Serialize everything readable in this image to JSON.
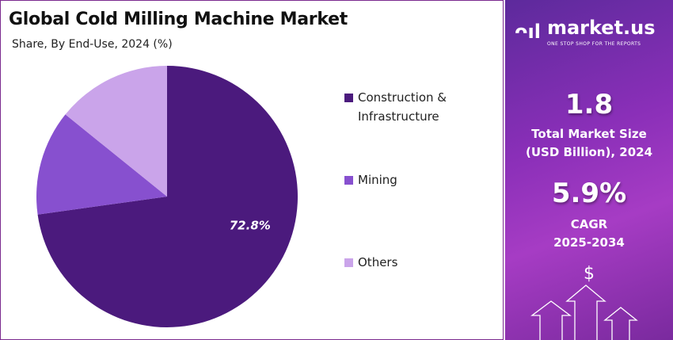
{
  "chart_data": {
    "type": "pie",
    "title": "Global Cold Milling Machine Market",
    "subtitle": "Share, By End-Use, 2024 (%)",
    "slices": [
      {
        "name": "Construction & Infrastructure",
        "value": 72.8,
        "label": "72.8%",
        "color": "#4b1a7d"
      },
      {
        "name": "Mining",
        "value": 13.0,
        "color": "#8750cf"
      },
      {
        "name": "Others",
        "value": 14.2,
        "color": "#caa4ea"
      }
    ],
    "legend_position": "right"
  },
  "legend": {
    "l0": "Construction &",
    "l0b": "Infrastructure",
    "l1": "Mining",
    "l2": "Others"
  },
  "panel": {
    "brand": "market.us",
    "tagline": "ONE STOP SHOP FOR THE REPORTS",
    "market_size": "1.8",
    "market_size_label1": "Total Market Size",
    "market_size_label2": "(USD Billion), 2024",
    "cagr": "5.9%",
    "cagr_label1": "CAGR",
    "cagr_label2": "2025-2034",
    "currency_symbol": "$"
  }
}
